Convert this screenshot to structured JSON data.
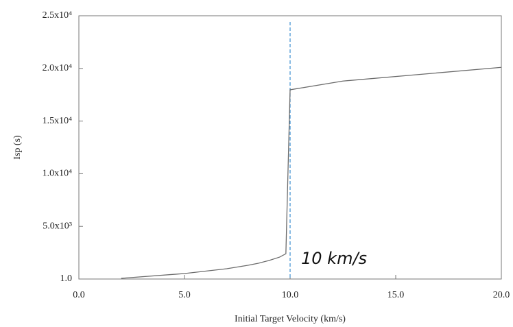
{
  "chart_data": {
    "type": "line",
    "x_label": "Initial Target Velocity (km/s)",
    "y_label": "Isp (s)",
    "x": [
      2.0,
      5.0,
      7.0,
      8.0,
      8.5,
      9.0,
      9.5,
      9.8,
      10.0,
      12.5,
      20.0
    ],
    "series": [
      {
        "color": "#6b6b6b",
        "values": [
          65,
          520,
          980,
          1300,
          1500,
          1760,
          2080,
          2400,
          17970,
          18800,
          20100
        ]
      }
    ],
    "xlim": [
      0,
      20
    ],
    "ylim": [
      1,
      25000
    ],
    "xticks": [
      {
        "value": 0,
        "label": "0.0"
      },
      {
        "value": 5,
        "label": "5.0"
      },
      {
        "value": 10,
        "label": "10.0"
      },
      {
        "value": 15,
        "label": "15.0"
      },
      {
        "value": 20,
        "label": "20.0"
      }
    ],
    "yticks": [
      {
        "value": 1,
        "label": "1.0"
      },
      {
        "value": 5000,
        "label": "5.0x10³"
      },
      {
        "value": 10000,
        "label": "1.0x10⁴"
      },
      {
        "value": 15000,
        "label": "1.5x10⁴"
      },
      {
        "value": 20000,
        "label": "2.0x10⁴"
      },
      {
        "value": 25000,
        "label": "2.5x10⁴"
      }
    ],
    "vline": {
      "value": 10,
      "color": "#3b8ed0",
      "label": "10 km/s"
    }
  }
}
